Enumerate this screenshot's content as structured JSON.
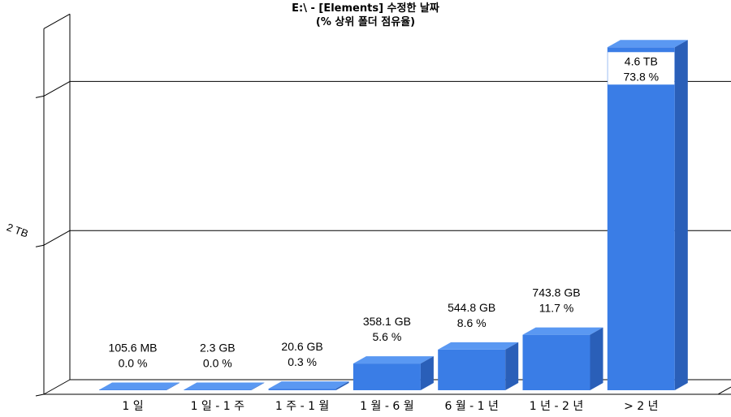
{
  "title": "E:\\  -  [Elements] 수정한 날짜",
  "subtitle": "(% 상위 폴더 점유율)",
  "colors": {
    "bar_front": "#3a7de6",
    "bar_top": "#5a98f2",
    "bar_side": "#2a5fb8",
    "grid": "#000000",
    "label_bg": "#ffffff"
  },
  "chart_data": {
    "type": "bar",
    "title": "E:\\  -  [Elements] 수정한 날짜",
    "subtitle": "(% 상위 폴더 점유율)",
    "xlabel": "",
    "ylabel": "",
    "unit": "TB",
    "three_d": true,
    "legend": "none",
    "grid": true,
    "categories": [
      "1 일",
      "1 일 - 1 주",
      "1 주 - 1 월",
      "1 월 - 6 월",
      "6 월 - 1 년",
      "1 년 - 2 년",
      "> 2 년"
    ],
    "values": [
      0.0001,
      0.0023,
      0.0206,
      0.3581,
      0.5448,
      0.7438,
      4.6
    ],
    "labels": [
      {
        "size": "105.6 MB",
        "percent": "0.0 %"
      },
      {
        "size": "2.3 GB",
        "percent": "0.0 %"
      },
      {
        "size": "20.6 GB",
        "percent": "0.3 %"
      },
      {
        "size": "358.1 GB",
        "percent": "5.6 %"
      },
      {
        "size": "544.8 GB",
        "percent": "8.6 %"
      },
      {
        "size": "743.8 GB",
        "percent": "11.7 %"
      },
      {
        "size": "4.6 TB",
        "percent": "73.8 %"
      }
    ],
    "yticks": [
      {
        "value": 2,
        "label": "2 TB"
      }
    ],
    "gridlines": [
      2,
      4
    ],
    "ylim": [
      0,
      4.6
    ]
  }
}
